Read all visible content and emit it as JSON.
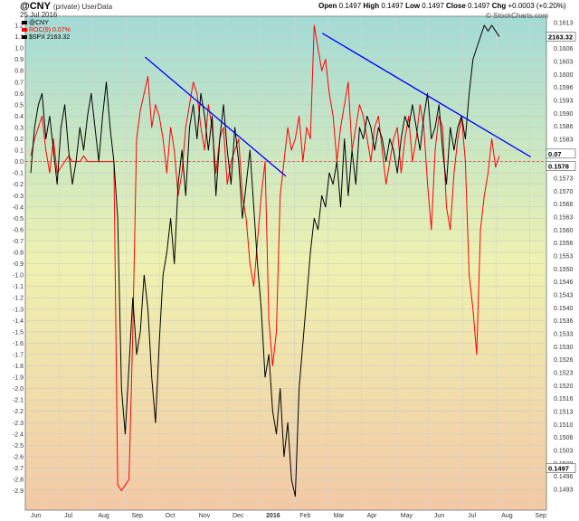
{
  "header": {
    "symbol": "@CNY",
    "symbol_note": "(private) UserData",
    "date": "25 Jul 2016",
    "ohlc": [
      {
        "label": "Open",
        "value": "0.1497"
      },
      {
        "label": "High",
        "value": "0.1497"
      },
      {
        "label": "Low",
        "value": "0.1497"
      },
      {
        "label": "Close",
        "value": "0.1497"
      },
      {
        "label": "Chg",
        "value": "+0.0003 (+0.20%)"
      }
    ],
    "brand": "© StockCharts.com"
  },
  "legend": [
    {
      "text": "@CNY",
      "color": "#000000"
    },
    {
      "text": "ROC(9) 0.07%",
      "color": "#ff0000"
    },
    {
      "text": "$SPX 2163.32",
      "color": "#000000"
    }
  ],
  "colors": {
    "background_top": "#a2dbd6",
    "background_mid": "#eef2b0",
    "background_bottom": "#f3c9a6",
    "roc_line": "#ff0000",
    "spx_line": "#000000",
    "trendline": "#0000ff",
    "zero_line": "#e04040"
  },
  "chart_data": {
    "type": "line",
    "x_labels": [
      "Jun",
      "Jul",
      "Aug",
      "Sep",
      "Oct",
      "Nov",
      "Dec",
      "2016",
      "Feb",
      "Mar",
      "Apr",
      "May",
      "Jun",
      "Jul",
      "Aug",
      "Sep"
    ],
    "left_axis": {
      "ticks": [
        "1.2",
        "1.1",
        "1.0",
        "0.9",
        "0.8",
        "0.7",
        "0.6",
        "0.5",
        "0.4",
        "0.3",
        "0.2",
        "0.1",
        "0.0",
        "-0.1",
        "-0.2",
        "-0.3",
        "-0.4",
        "-0.5",
        "-0.6",
        "-0.7",
        "-0.8",
        "-0.9",
        "-1.0",
        "-1.1",
        "-1.2",
        "-1.3",
        "-1.4",
        "-1.5",
        "-1.6",
        "-1.7",
        "-1.8",
        "-1.9",
        "-2.0",
        "-2.1",
        "-2.2",
        "-2.3",
        "-2.4",
        "-2.5",
        "-2.6",
        "-2.7",
        "-2.8",
        "-2.9"
      ],
      "range": [
        -2.95,
        1.27
      ]
    },
    "right_axis": {
      "ticks": [
        "0.1613",
        "0.1610",
        "0.1606",
        "0.1603",
        "0.1600",
        "0.1596",
        "0.1593",
        "0.1590",
        "0.1586",
        "0.1583",
        "0.1580",
        "0.1576",
        "0.1573",
        "0.1570",
        "0.1566",
        "0.1563",
        "0.1560",
        "0.1556",
        "0.1553",
        "0.1550",
        "0.1546",
        "0.1543",
        "0.1540",
        "0.1536",
        "0.1533",
        "0.1530",
        "0.1526",
        "0.1523",
        "0.1520",
        "0.1516",
        "0.1513",
        "0.1510",
        "0.1506",
        "0.1503",
        "0.1500",
        "0.1496",
        "0.1493"
      ],
      "markers": [
        {
          "text": "2163.32",
          "value": 1.1
        },
        {
          "text": "0.07",
          "value": 0.07
        },
        {
          "text": "0.1578",
          "value": -0.04
        },
        {
          "text": "0.1497",
          "value": -2.7
        }
      ]
    },
    "zero_line": 0.0,
    "series": [
      {
        "name": "ROC(9)",
        "color": "#ff0000",
        "y": [
          0.05,
          0.2,
          0.3,
          0.4,
          0.1,
          -0.1,
          0.2,
          -0.1,
          -0.05,
          0.0,
          0.05,
          0.0,
          0.0,
          0.0,
          0.05,
          0.0,
          0.0,
          0.0,
          0.0,
          0.0,
          0.0,
          0.0,
          0.0,
          -2.85,
          -2.9,
          -2.85,
          -2.8,
          -1.5,
          0.2,
          0.45,
          0.6,
          0.75,
          0.3,
          0.5,
          0.4,
          0.2,
          -0.1,
          0.3,
          0.1,
          -0.3,
          -0.1,
          0.3,
          0.5,
          0.7,
          0.6,
          0.3,
          0.1,
          0.5,
          0.3,
          -0.1,
          0.2,
          0.3,
          -0.2,
          0.0,
          0.1,
          0.2,
          -0.3,
          -0.5,
          -0.9,
          -1.1,
          -0.7,
          -0.3,
          0.0,
          -1.4,
          -1.8,
          -1.5,
          -0.3,
          0.0,
          0.3,
          0.1,
          0.2,
          0.4,
          0.0,
          0.3,
          0.2,
          1.2,
          1.0,
          0.8,
          0.9,
          0.6,
          0.4,
          0.0,
          0.3,
          0.5,
          0.7,
          0.1,
          0.3,
          0.5,
          0.4,
          0.2,
          0.0,
          0.3,
          0.4,
          0.1,
          -0.2,
          0.0,
          0.2,
          0.3,
          -0.1,
          0.2,
          0.4,
          0.0,
          0.2,
          0.5,
          0.3,
          -0.2,
          -0.6,
          0.1,
          0.4,
          0.3,
          -0.4,
          -0.6,
          -0.1,
          0.2,
          0.4,
          0.0,
          -1.0,
          -1.3,
          -1.7,
          -0.6,
          -0.3,
          -0.1,
          0.2,
          -0.05,
          0.05
        ]
      },
      {
        "name": "$SPX",
        "color": "#000000",
        "y": [
          -0.1,
          0.3,
          0.5,
          0.6,
          0.2,
          0.4,
          0.1,
          -0.2,
          0.3,
          0.5,
          0.1,
          -0.2,
          0.0,
          0.3,
          0.1,
          0.4,
          0.6,
          0.3,
          0.0,
          0.4,
          0.7,
          0.3,
          0.0,
          -0.5,
          -2.0,
          -2.4,
          -1.8,
          -1.2,
          -1.7,
          -1.5,
          -1.0,
          -1.3,
          -1.9,
          -2.3,
          -1.6,
          -1.0,
          -0.8,
          -0.5,
          -0.9,
          -0.2,
          0.1,
          -0.3,
          0.3,
          0.5,
          0.2,
          0.6,
          0.4,
          0.1,
          0.4,
          -0.3,
          0.2,
          0.5,
          0.1,
          -0.2,
          0.3,
          0.0,
          -0.5,
          -0.2,
          0.1,
          -0.4,
          -0.9,
          -1.3,
          -1.9,
          -1.7,
          -2.2,
          -2.4,
          -2.0,
          -2.6,
          -2.3,
          -2.8,
          -2.95,
          -2.0,
          -1.6,
          -1.2,
          -0.8,
          -0.5,
          -0.6,
          -0.3,
          -0.4,
          -0.1,
          -0.2,
          0.0,
          -0.4,
          0.2,
          -0.3,
          0.1,
          -0.2,
          0.3,
          0.2,
          0.4,
          0.3,
          0.1,
          0.3,
          0.2,
          0.0,
          0.2,
          0.1,
          -0.1,
          0.2,
          0.4,
          0.3,
          0.5,
          0.3,
          0.1,
          0.4,
          0.6,
          0.2,
          0.3,
          0.5,
          0.1,
          -0.2,
          0.3,
          0.1,
          0.3,
          0.4,
          0.2,
          0.6,
          0.9,
          1.0,
          1.1,
          1.2,
          1.15,
          1.2,
          1.15,
          1.1
        ]
      }
    ],
    "trendlines": [
      {
        "from": {
          "x": 0.23,
          "y": 0.92
        },
        "to": {
          "x": 0.5,
          "y": -0.13
        }
      },
      {
        "from": {
          "x": 0.57,
          "y": 1.13
        },
        "to": {
          "x": 0.97,
          "y": 0.04
        }
      }
    ]
  }
}
